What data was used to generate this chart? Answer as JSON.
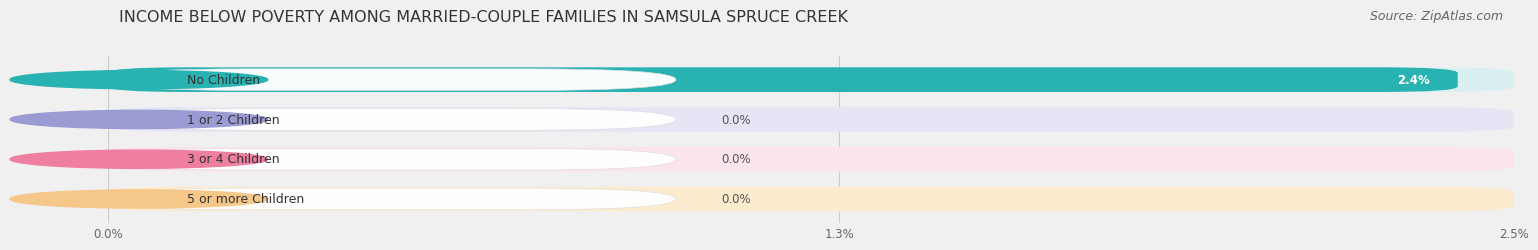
{
  "title": "INCOME BELOW POVERTY AMONG MARRIED-COUPLE FAMILIES IN SAMSULA SPRUCE CREEK",
  "source": "Source: ZipAtlas.com",
  "categories": [
    "No Children",
    "1 or 2 Children",
    "3 or 4 Children",
    "5 or more Children"
  ],
  "values": [
    2.4,
    0.0,
    0.0,
    0.0
  ],
  "bar_colors": [
    "#29b2b2",
    "#9b9bd4",
    "#ee7fa0",
    "#f5c88a"
  ],
  "bar_bg_colors": [
    "#d8f0f0",
    "#e5e5f5",
    "#fce4ec",
    "#fdebd0"
  ],
  "xlim": [
    0,
    2.5
  ],
  "xticks": [
    0.0,
    1.3,
    2.5
  ],
  "xtick_labels": [
    "0.0%",
    "1.3%",
    "2.5%"
  ],
  "background_color": "#f0f0f0",
  "title_fontsize": 11.5,
  "source_fontsize": 9,
  "label_fontsize": 9,
  "value_fontsize": 8.5
}
